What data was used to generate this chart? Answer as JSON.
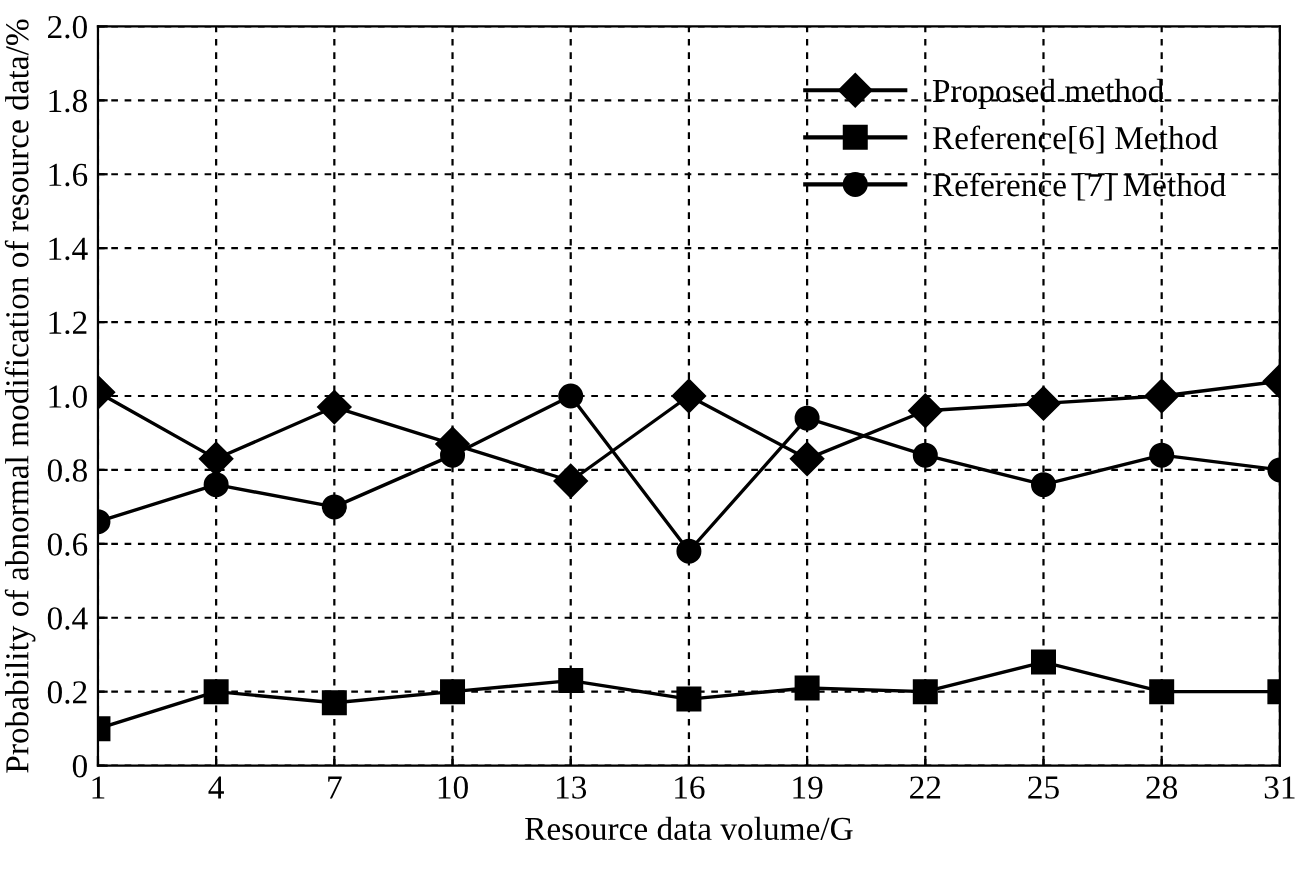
{
  "chart_data": {
    "type": "line",
    "xlabel": "Resource data volume/G",
    "ylabel": "Probability of abnormal modification of resource data/%",
    "x": [
      1,
      4,
      7,
      10,
      13,
      16,
      19,
      22,
      25,
      28,
      31
    ],
    "series": [
      {
        "name": "Proposed method",
        "color": "#000000",
        "marker": "diamond",
        "values": [
          1.01,
          0.83,
          0.97,
          0.87,
          0.77,
          1.0,
          0.83,
          0.96,
          0.98,
          1.0,
          1.04
        ]
      },
      {
        "name": "Reference[6] Method",
        "color": "#000000",
        "marker": "square",
        "values": [
          0.1,
          0.2,
          0.17,
          0.2,
          0.23,
          0.18,
          0.21,
          0.2,
          0.28,
          0.2,
          0.2
        ]
      },
      {
        "name": "Reference [7] Method",
        "color": "#000000",
        "marker": "circle",
        "values": [
          0.66,
          0.76,
          0.7,
          0.84,
          1.0,
          0.58,
          0.94,
          0.84,
          0.76,
          0.84,
          0.8
        ]
      }
    ],
    "xlim": [
      1,
      31
    ],
    "xticks": [
      1,
      4,
      7,
      10,
      13,
      16,
      19,
      22,
      25,
      28,
      31
    ],
    "ylim": [
      0,
      2.0
    ],
    "yticks": [
      0,
      {
        "value": 0.2,
        "label": "0.2"
      },
      {
        "value": 0.4,
        "label": "0.4"
      },
      {
        "value": 0.6,
        "label": "0.6"
      },
      {
        "value": 0.8,
        "label": "0.8"
      },
      {
        "value": 1.0,
        "label": "1.0"
      },
      {
        "value": 1.2,
        "label": "1.2"
      },
      {
        "value": 1.4,
        "label": "1.4"
      },
      {
        "value": 1.6,
        "label": "1.6"
      },
      {
        "value": 1.8,
        "label": "1.8"
      },
      {
        "value": 2.0,
        "label": "2.0"
      }
    ],
    "grid": true,
    "legend": "top right",
    "line_style": "solid"
  }
}
